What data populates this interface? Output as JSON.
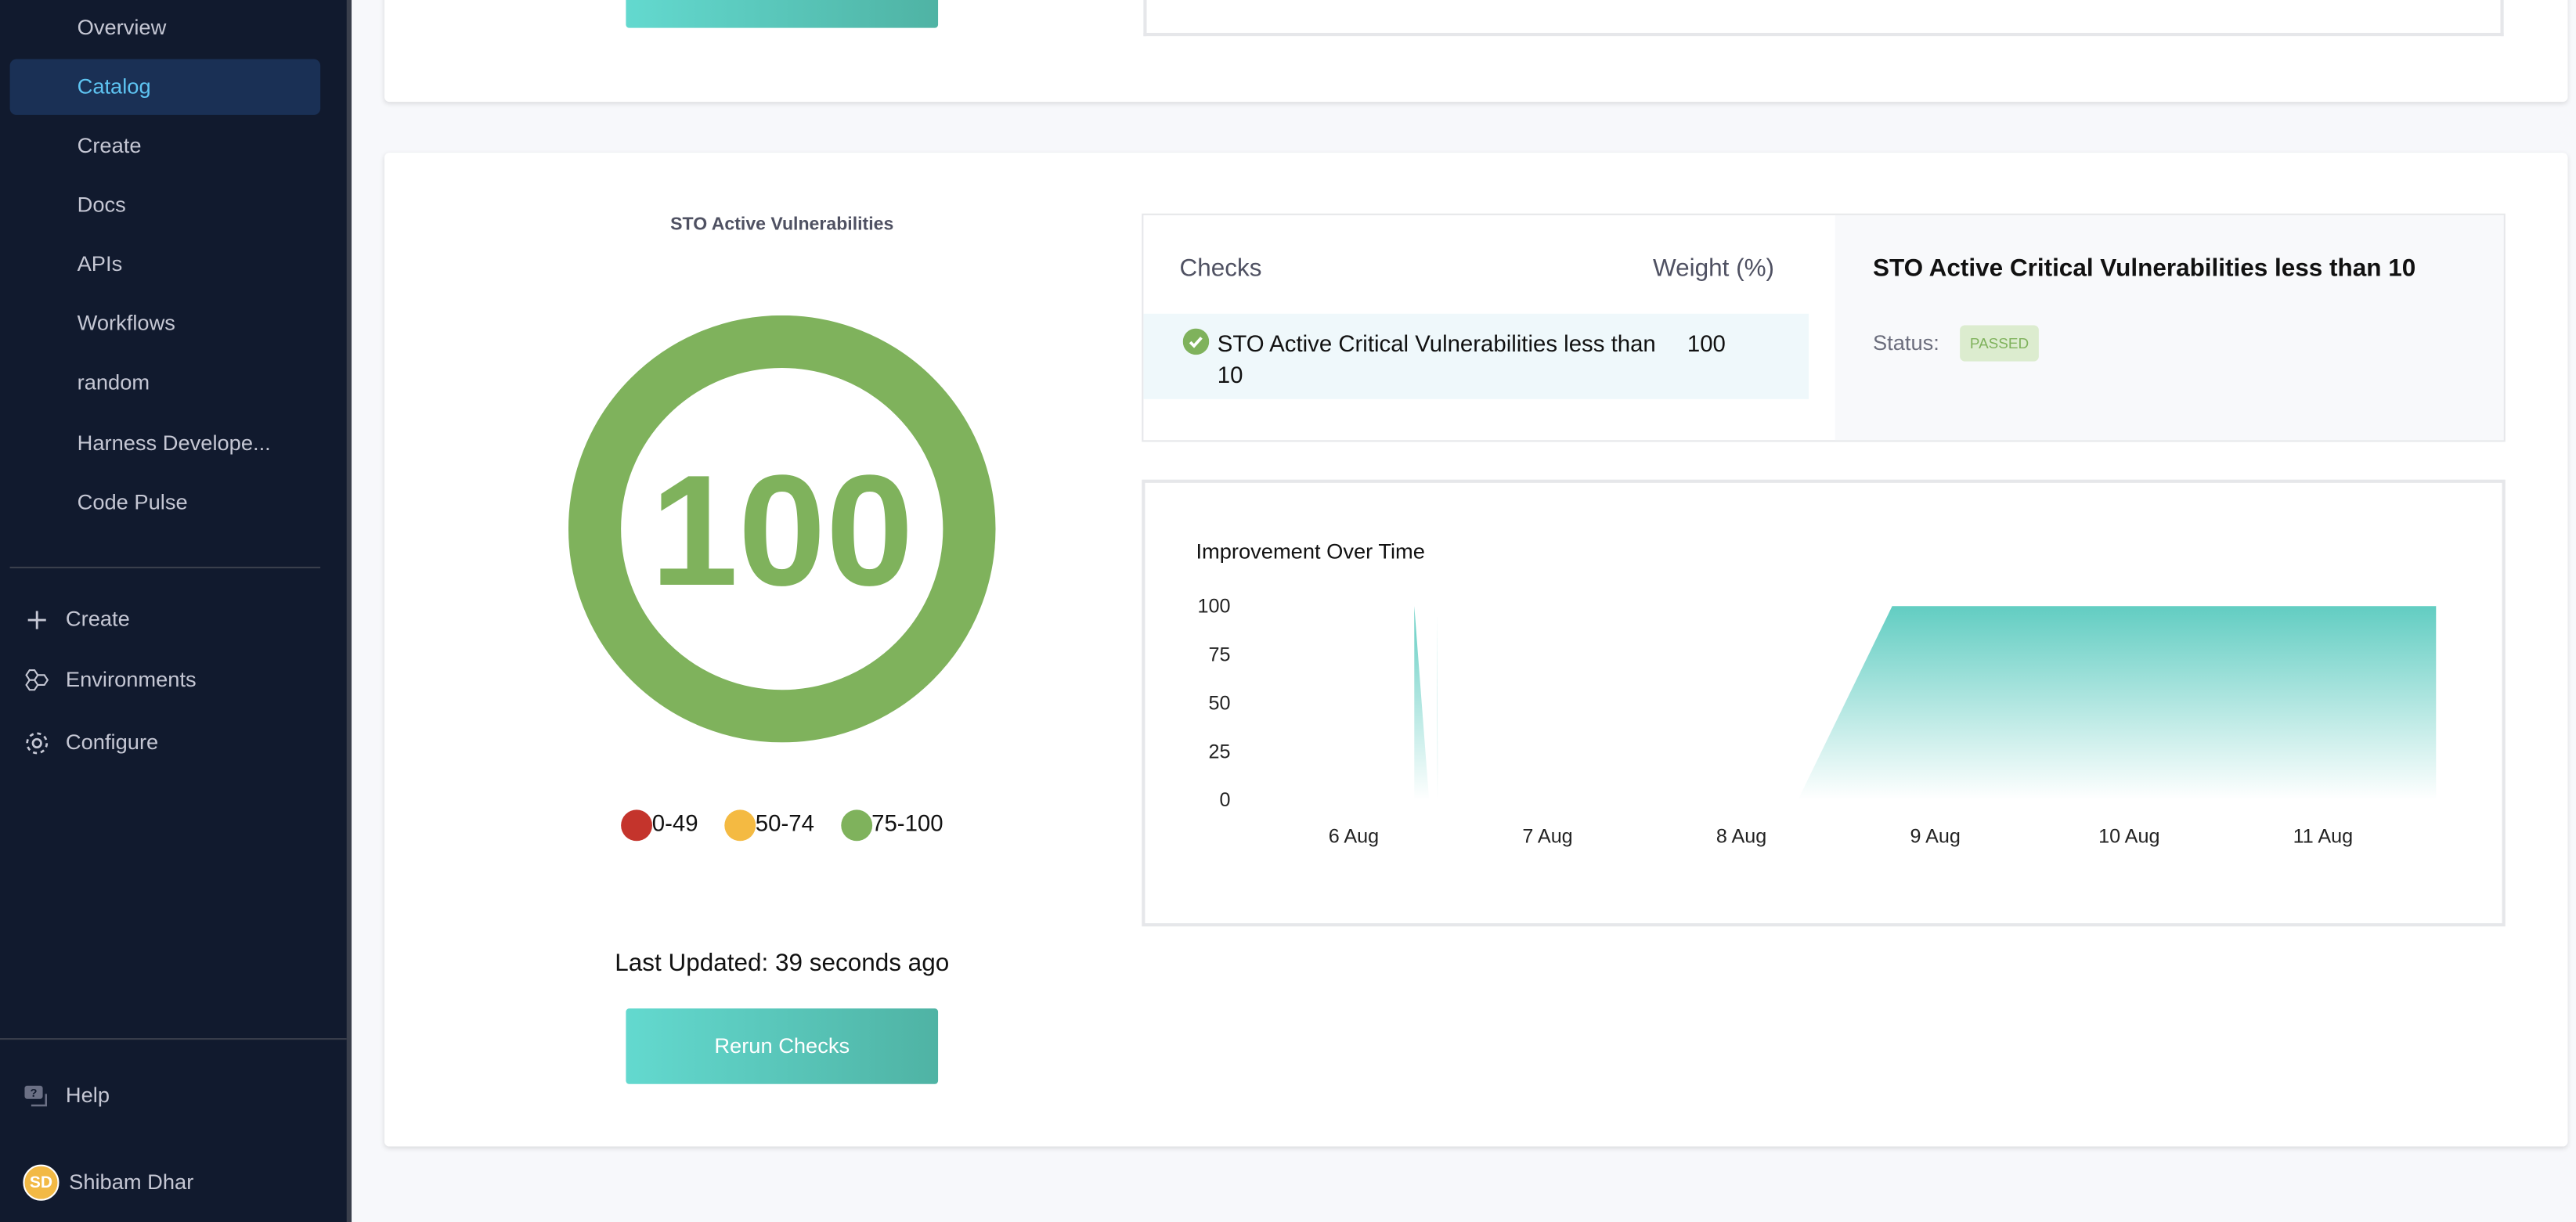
{
  "sidebar": {
    "items": [
      {
        "label": "Overview"
      },
      {
        "label": "Catalog",
        "active": true
      },
      {
        "label": "Create"
      },
      {
        "label": "Docs"
      },
      {
        "label": "APIs"
      },
      {
        "label": "Workflows"
      },
      {
        "label": "random"
      },
      {
        "label": "Harness Develope..."
      },
      {
        "label": "Code Pulse"
      }
    ],
    "secondary": [
      {
        "label": "Create",
        "icon": "plus-icon"
      },
      {
        "label": "Environments",
        "icon": "environments-icon"
      },
      {
        "label": "Configure",
        "icon": "gear-icon"
      }
    ],
    "help": {
      "label": "Help",
      "icon": "help-chat-icon"
    },
    "user": {
      "initials": "SD",
      "name": "Shibam Dhar"
    }
  },
  "scorecard": {
    "title": "STO Active Vulnerabilities",
    "score": "100",
    "score_value": 100,
    "score_color": "#7fb25c",
    "legend": [
      {
        "label": "0-49",
        "color": "#c4342c"
      },
      {
        "label": "50-74",
        "color": "#f4ba42"
      },
      {
        "label": "75-100",
        "color": "#7fb25c"
      }
    ],
    "last_updated": "Last Updated: 39 seconds ago",
    "rerun_label": "Rerun Checks"
  },
  "checks": {
    "header_checks": "Checks",
    "header_weight": "Weight (%)",
    "rows": [
      {
        "name": "STO Active Critical Vulnerabilities less than 10",
        "weight": "100",
        "status": "passed"
      }
    ],
    "detail": {
      "title": "STO Active Critical Vulnerabilities less than 10",
      "status_label": "Status:",
      "status_value": "PASSED"
    }
  },
  "chart_data": {
    "type": "area",
    "title": "Improvement Over Time",
    "ylim": [
      0,
      100
    ],
    "yticks": [
      "100",
      "75",
      "50",
      "25",
      "0"
    ],
    "xticks": [
      "6 Aug",
      "7 Aug",
      "8 Aug",
      "9 Aug",
      "10 Aug",
      "11 Aug"
    ],
    "fill_color": "#62cdc2",
    "grid": false,
    "segments": [
      [
        [
          "6 Aug 07:30",
          100
        ],
        [
          "6 Aug 09:20",
          0
        ]
      ],
      [
        [
          "6 Aug 10:20",
          98
        ],
        [
          "6 Aug 10:25",
          0
        ]
      ],
      [
        [
          "8 Aug 07:00",
          0
        ],
        [
          "8 Aug 18:40",
          100
        ],
        [
          "11 Aug 14:00",
          100
        ]
      ]
    ]
  }
}
